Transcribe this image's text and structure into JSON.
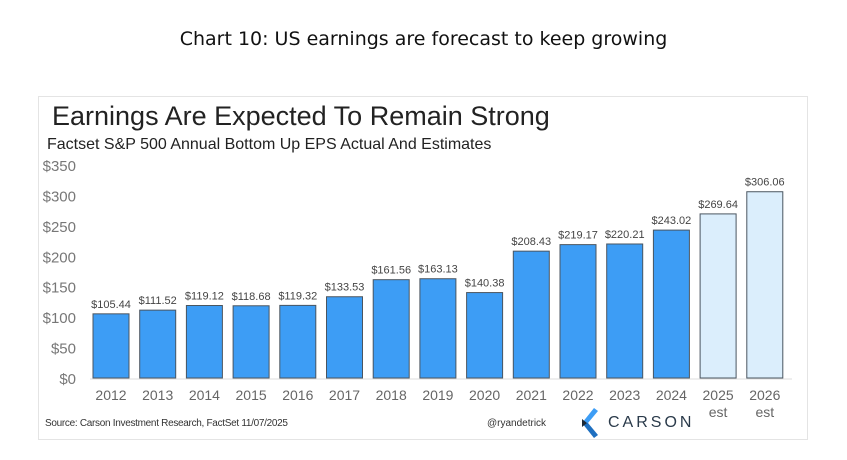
{
  "page_title": "Chart 10: US earnings are forecast to keep growing",
  "chart_data": {
    "type": "bar",
    "title": "Earnings Are Expected To Remain Strong",
    "subtitle": "Factset S&P 500 Annual Bottom Up EPS Actual And Estimates",
    "categories": [
      "2012",
      "2013",
      "2014",
      "2015",
      "2016",
      "2017",
      "2018",
      "2019",
      "2020",
      "2021",
      "2022",
      "2023",
      "2024",
      "2025 est",
      "2026 est"
    ],
    "values": [
      105.44,
      111.52,
      119.12,
      118.68,
      119.32,
      133.53,
      161.56,
      163.13,
      140.38,
      208.43,
      219.17,
      220.21,
      243.02,
      269.64,
      306.06
    ],
    "data_labels": [
      "$105.44",
      "$111.52",
      "$119.12",
      "$118.68",
      "$119.32",
      "$133.53",
      "$161.56",
      "$163.13",
      "$140.38",
      "$208.43",
      "$219.17",
      "$220.21",
      "$243.02",
      "$269.64",
      "$306.06"
    ],
    "estimate": [
      false,
      false,
      false,
      false,
      false,
      false,
      false,
      false,
      false,
      false,
      false,
      false,
      false,
      true,
      true
    ],
    "ylim": [
      0,
      350
    ],
    "yticks": [
      "$0",
      "$50",
      "$100",
      "$150",
      "$200",
      "$250",
      "$300",
      "$350"
    ],
    "grid": false,
    "colors": {
      "actual": "#3d9df5",
      "estimate": "#dbeefc",
      "outline": "#4a5560"
    }
  },
  "footer": {
    "source": "Source: Carson Investment Research, FactSet 11/07/2025",
    "handle": "@ryandetrick",
    "logo_text": "CARSON"
  }
}
